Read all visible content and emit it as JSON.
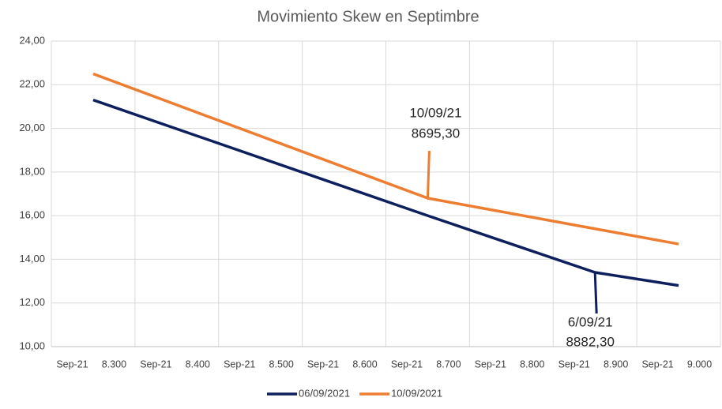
{
  "chart_data": {
    "type": "line",
    "title": "Movimiento Skew en Septimbre",
    "categories": [
      "Sep-21",
      "8.300",
      "Sep-21",
      "8.400",
      "Sep-21",
      "8.500",
      "Sep-21",
      "8.600",
      "Sep-21",
      "8.700",
      "Sep-21",
      "8.800",
      "Sep-21",
      "8.900",
      "Sep-21",
      "9.000"
    ],
    "x": [
      8275,
      8675,
      8875,
      8975
    ],
    "xlim": [
      8225,
      9025
    ],
    "series": [
      {
        "name": "06/09/2021",
        "color": "#0d1f5c",
        "values": [
          21.3,
          16.0,
          13.4,
          12.8
        ]
      },
      {
        "name": "10/09/2021",
        "color": "#ed7d31",
        "values": [
          22.5,
          16.8,
          15.4,
          14.7
        ]
      }
    ],
    "ylim": [
      10,
      24
    ],
    "yticks": [
      {
        "value": 10,
        "label": "10,00"
      },
      {
        "value": 12,
        "label": "12,00"
      },
      {
        "value": 14,
        "label": "14,00"
      },
      {
        "value": 16,
        "label": "16,00"
      },
      {
        "value": 18,
        "label": "18,00"
      },
      {
        "value": 20,
        "label": "20,00"
      },
      {
        "value": 22,
        "label": "22,00"
      },
      {
        "value": 24,
        "label": "24,00"
      }
    ],
    "grid": true,
    "legend": "bottom",
    "annotations": [
      {
        "lines": [
          "10/09/21",
          "8695,30"
        ],
        "series": 1,
        "point": 1
      },
      {
        "lines": [
          "6/09/21",
          "8882,30"
        ],
        "series": 0,
        "point": 2
      }
    ]
  }
}
